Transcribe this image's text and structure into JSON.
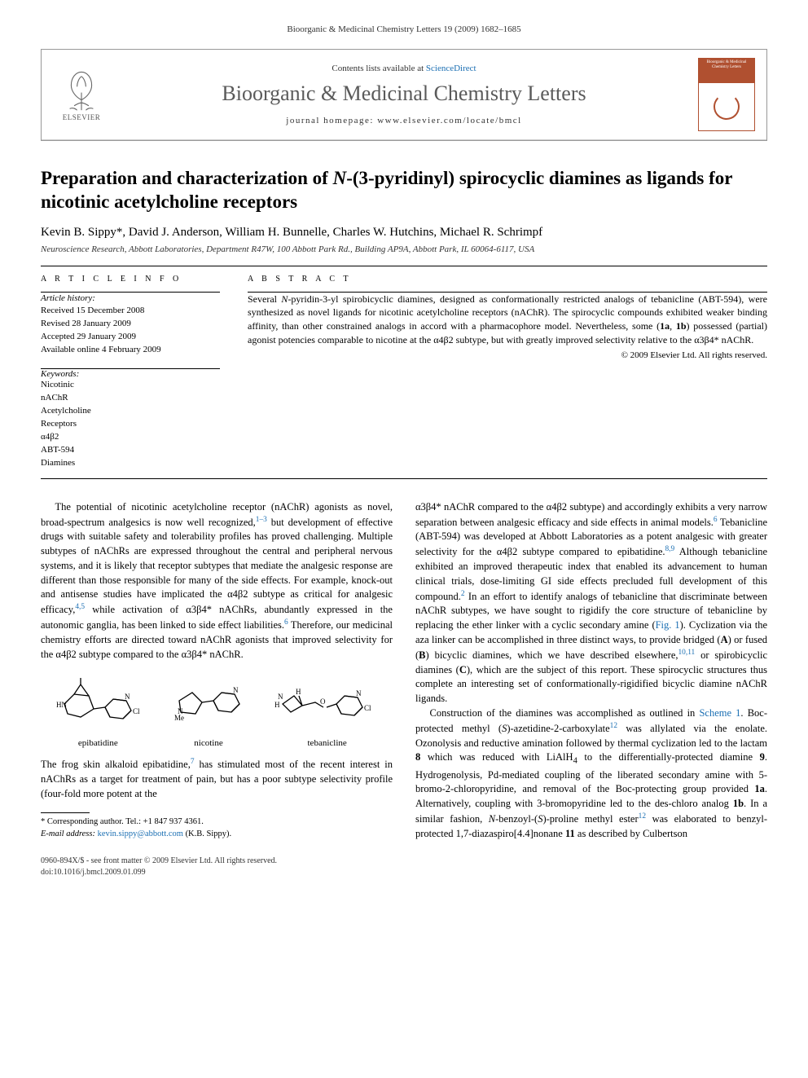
{
  "running_header": "Bioorganic & Medicinal Chemistry Letters 19 (2009) 1682–1685",
  "masthead": {
    "publisher_label": "ELSEVIER",
    "contents_prefix": "Contents lists available at ",
    "contents_link": "ScienceDirect",
    "journal_name": "Bioorganic & Medicinal Chemistry Letters",
    "homepage_prefix": "journal homepage: ",
    "homepage_url": "www.elsevier.com/locate/bmcl",
    "cover_title": "Bioorganic & Medicinal Chemistry Letters"
  },
  "article": {
    "title_html": "Preparation and characterization of <i>N</i>-(3-pyridinyl) spirocyclic diamines as ligands for nicotinic acetylcholine receptors",
    "authors": "Kevin B. Sippy*, David J. Anderson, William H. Bunnelle, Charles W. Hutchins, Michael R. Schrimpf",
    "affiliation": "Neuroscience Research, Abbott Laboratories, Department R47W, 100 Abbott Park Rd., Building AP9A, Abbott Park, IL 60064-6117, USA"
  },
  "info": {
    "heading": "A R T I C L E   I N F O",
    "history_label": "Article history:",
    "received": "Received 15 December 2008",
    "revised": "Revised 28 January 2009",
    "accepted": "Accepted 29 January 2009",
    "online": "Available online 4 February 2009",
    "keywords_label": "Keywords:",
    "keywords": [
      "Nicotinic",
      "nAChR",
      "Acetylcholine",
      "Receptors",
      "α4β2",
      "ABT-594",
      "Diamines"
    ]
  },
  "abstract": {
    "heading": "A B S T R A C T",
    "text_html": "Several <i>N</i>-pyridin-3-yl spirobicyclic diamines, designed as conformationally restricted analogs of tebanicline (ABT-594), were synthesized as novel ligands for nicotinic acetylcholine receptors (nAChR). The spirocyclic compounds exhibited weaker binding affinity, than other constrained analogs in accord with a pharmacophore model. Nevertheless, some (<b>1a</b>, <b>1b</b>) possessed (partial) agonist potencies comparable to nicotine at the α4β2 subtype, but with greatly improved selectivity relative to the α3β4* nAChR.",
    "copyright": "© 2009 Elsevier Ltd. All rights reserved."
  },
  "body": {
    "left": {
      "p1_html": "The potential of nicotinic acetylcholine receptor (nAChR) agonists as novel, broad-spectrum analgesics is now well recognized,<sup class=\"ref-link\">1–3</sup> but development of effective drugs with suitable safety and tolerability profiles has proved challenging. Multiple subtypes of nAChRs are expressed throughout the central and peripheral nervous systems, and it is likely that receptor subtypes that mediate the analgesic response are different than those responsible for many of the side effects. For example, knock-out and antisense studies have implicated the α4β2 subtype as critical for analgesic efficacy,<sup class=\"ref-link\">4,5</sup> while activation of α3β4* nAChRs, abundantly expressed in the autonomic ganglia, has been linked to side effect liabilities.<sup class=\"ref-link\">6</sup> Therefore, our medicinal chemistry efforts are directed toward nAChR agonists that improved selectivity for the α4β2 subtype compared to the α3β4* nAChR.",
      "p2_html": "The frog skin alkaloid epibatidine,<sup class=\"ref-link\">7</sup> has stimulated most of the recent interest in nAChRs as a target for treatment of pain, but has a poor subtype selectivity profile (four-fold more potent at the"
    },
    "right": {
      "p1_html": "α3β4* nAChR compared to the α4β2 subtype) and accordingly exhibits a very narrow separation between analgesic efficacy and side effects in animal models.<sup class=\"ref-link\">6</sup> Tebanicline (ABT-594) was developed at Abbott Laboratories as a potent analgesic with greater selectivity for the α4β2 subtype compared to epibatidine.<sup class=\"ref-link\">8,9</sup> Although tebanicline exhibited an improved therapeutic index that enabled its advancement to human clinical trials, dose-limiting GI side effects precluded full development of this compound.<sup class=\"ref-link\">2</sup> In an effort to identify analogs of tebanicline that discriminate between nAChR subtypes, we have sought to rigidify the core structure of tebanicline by replacing the ether linker with a cyclic secondary amine (<span class=\"ref-link\">Fig. 1</span>). Cyclization via the aza linker can be accomplished in three distinct ways, to provide bridged (<b>A</b>) or fused (<b>B</b>) bicyclic diamines, which we have described elsewhere,<sup class=\"ref-link\">10,11</sup> or spirobicyclic diamines (<b>C</b>), which are the subject of this report. These spirocyclic structures thus complete an interesting set of conformationally-rigidified bicyclic diamine nAChR ligands.",
      "p2_html": "Construction of the diamines was accomplished as outlined in <span class=\"ref-link\">Scheme 1</span>. Boc-protected methyl (<i>S</i>)-azetidine-2-carboxylate<sup class=\"ref-link\">12</sup> was allylated via the enolate. Ozonolysis and reductive amination followed by thermal cyclization led to the lactam <b>8</b> which was reduced with LiAlH<sub>4</sub> to the differentially-protected diamine <b>9</b>. Hydrogenolysis, Pd-mediated coupling of the liberated secondary amine with 5-bromo-2-chloropyridine, and removal of the Boc-protecting group provided <b>1a</b>. Alternatively, coupling with 3-bromopyridine led to the des-chloro analog <b>1b</b>. In a similar fashion, <i>N</i>-benzoyl-(<i>S</i>)-proline methyl ester<sup class=\"ref-link\">12</sup> was elaborated to benzyl-protected 1,7-diazaspiro[4.4]nonane <b>11</b> as described by Culbertson"
    }
  },
  "chem": {
    "epibatidine": "epibatidine",
    "nicotine": "nicotine",
    "tebanicline": "tebanicline"
  },
  "footnotes": {
    "corr": "* Corresponding author. Tel.: +1 847 937 4361.",
    "email_label": "E-mail address:",
    "email": "kevin.sippy@abbott.com",
    "email_who": "(K.B. Sippy)."
  },
  "footer": {
    "line1": "0960-894X/$ - see front matter © 2009 Elsevier Ltd. All rights reserved.",
    "line2": "doi:10.1016/j.bmcl.2009.01.099"
  },
  "colors": {
    "link": "#1b6fb3",
    "cover_accent": "#b05030",
    "text": "#000000",
    "muted": "#555555"
  }
}
